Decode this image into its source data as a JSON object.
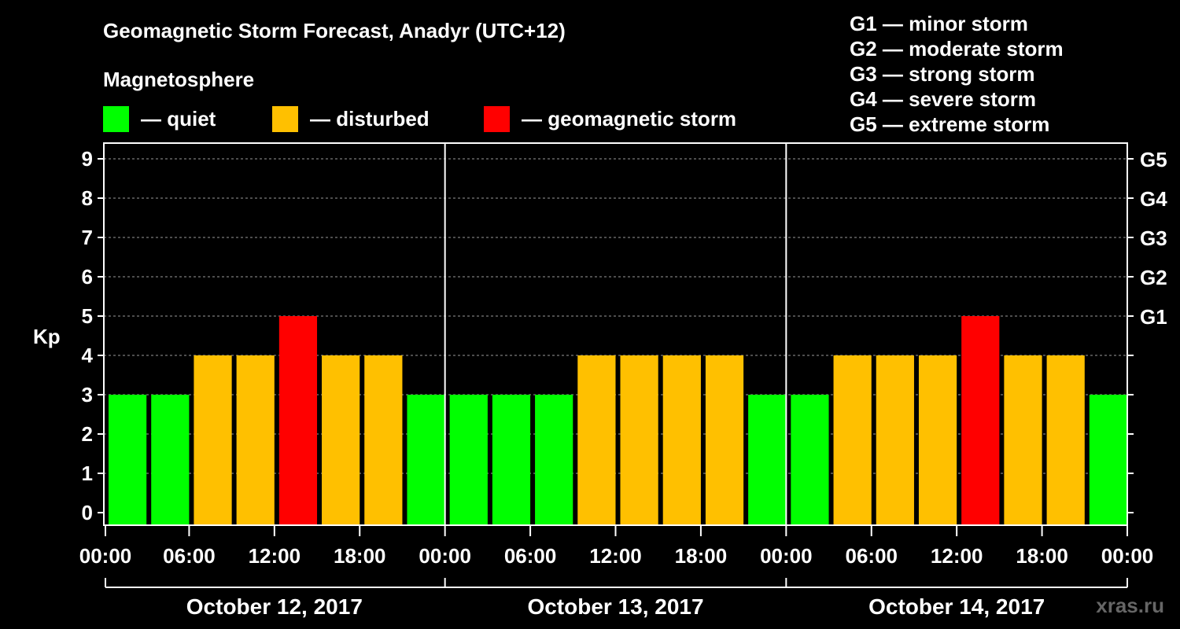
{
  "title": "Geomagnetic Storm Forecast, Anadyr (UTC+12)",
  "subtitle": "Magnetosphere",
  "legend": [
    {
      "label": "— quiet",
      "color": "#00ff00"
    },
    {
      "label": "— disturbed",
      "color": "#ffc000"
    },
    {
      "label": "— geomagnetic storm",
      "color": "#ff0000"
    }
  ],
  "g_levels": [
    "G1 — minor storm",
    "G2 — moderate storm",
    "G3 — strong storm",
    "G4 — severe storm",
    "G5 — extreme storm"
  ],
  "watermark": "xras.ru",
  "chart_data": {
    "type": "bar",
    "ylabel": "Kp",
    "ylim": [
      0,
      9
    ],
    "y_ticks": [
      "0",
      "1",
      "2",
      "3",
      "4",
      "5",
      "6",
      "7",
      "8",
      "9"
    ],
    "right_ticks": [
      {
        "kp": 5,
        "label": "G1"
      },
      {
        "kp": 6,
        "label": "G2"
      },
      {
        "kp": 7,
        "label": "G3"
      },
      {
        "kp": 8,
        "label": "G4"
      },
      {
        "kp": 9,
        "label": "G5"
      }
    ],
    "x_tick_labels": [
      "00:00",
      "06:00",
      "12:00",
      "18:00",
      "00:00",
      "06:00",
      "12:00",
      "18:00",
      "00:00",
      "06:00",
      "12:00",
      "18:00",
      "00:00"
    ],
    "days": [
      "October 12, 2017",
      "October 13, 2017",
      "October 14, 2017"
    ],
    "colors": {
      "quiet": "#00ff00",
      "disturbed": "#ffc000",
      "storm": "#ff0000"
    },
    "values": [
      3,
      3,
      4,
      4,
      5,
      4,
      4,
      3,
      3,
      3,
      3,
      4,
      4,
      4,
      4,
      3,
      3,
      4,
      4,
      4,
      5,
      4,
      4,
      3
    ],
    "grid": true
  }
}
